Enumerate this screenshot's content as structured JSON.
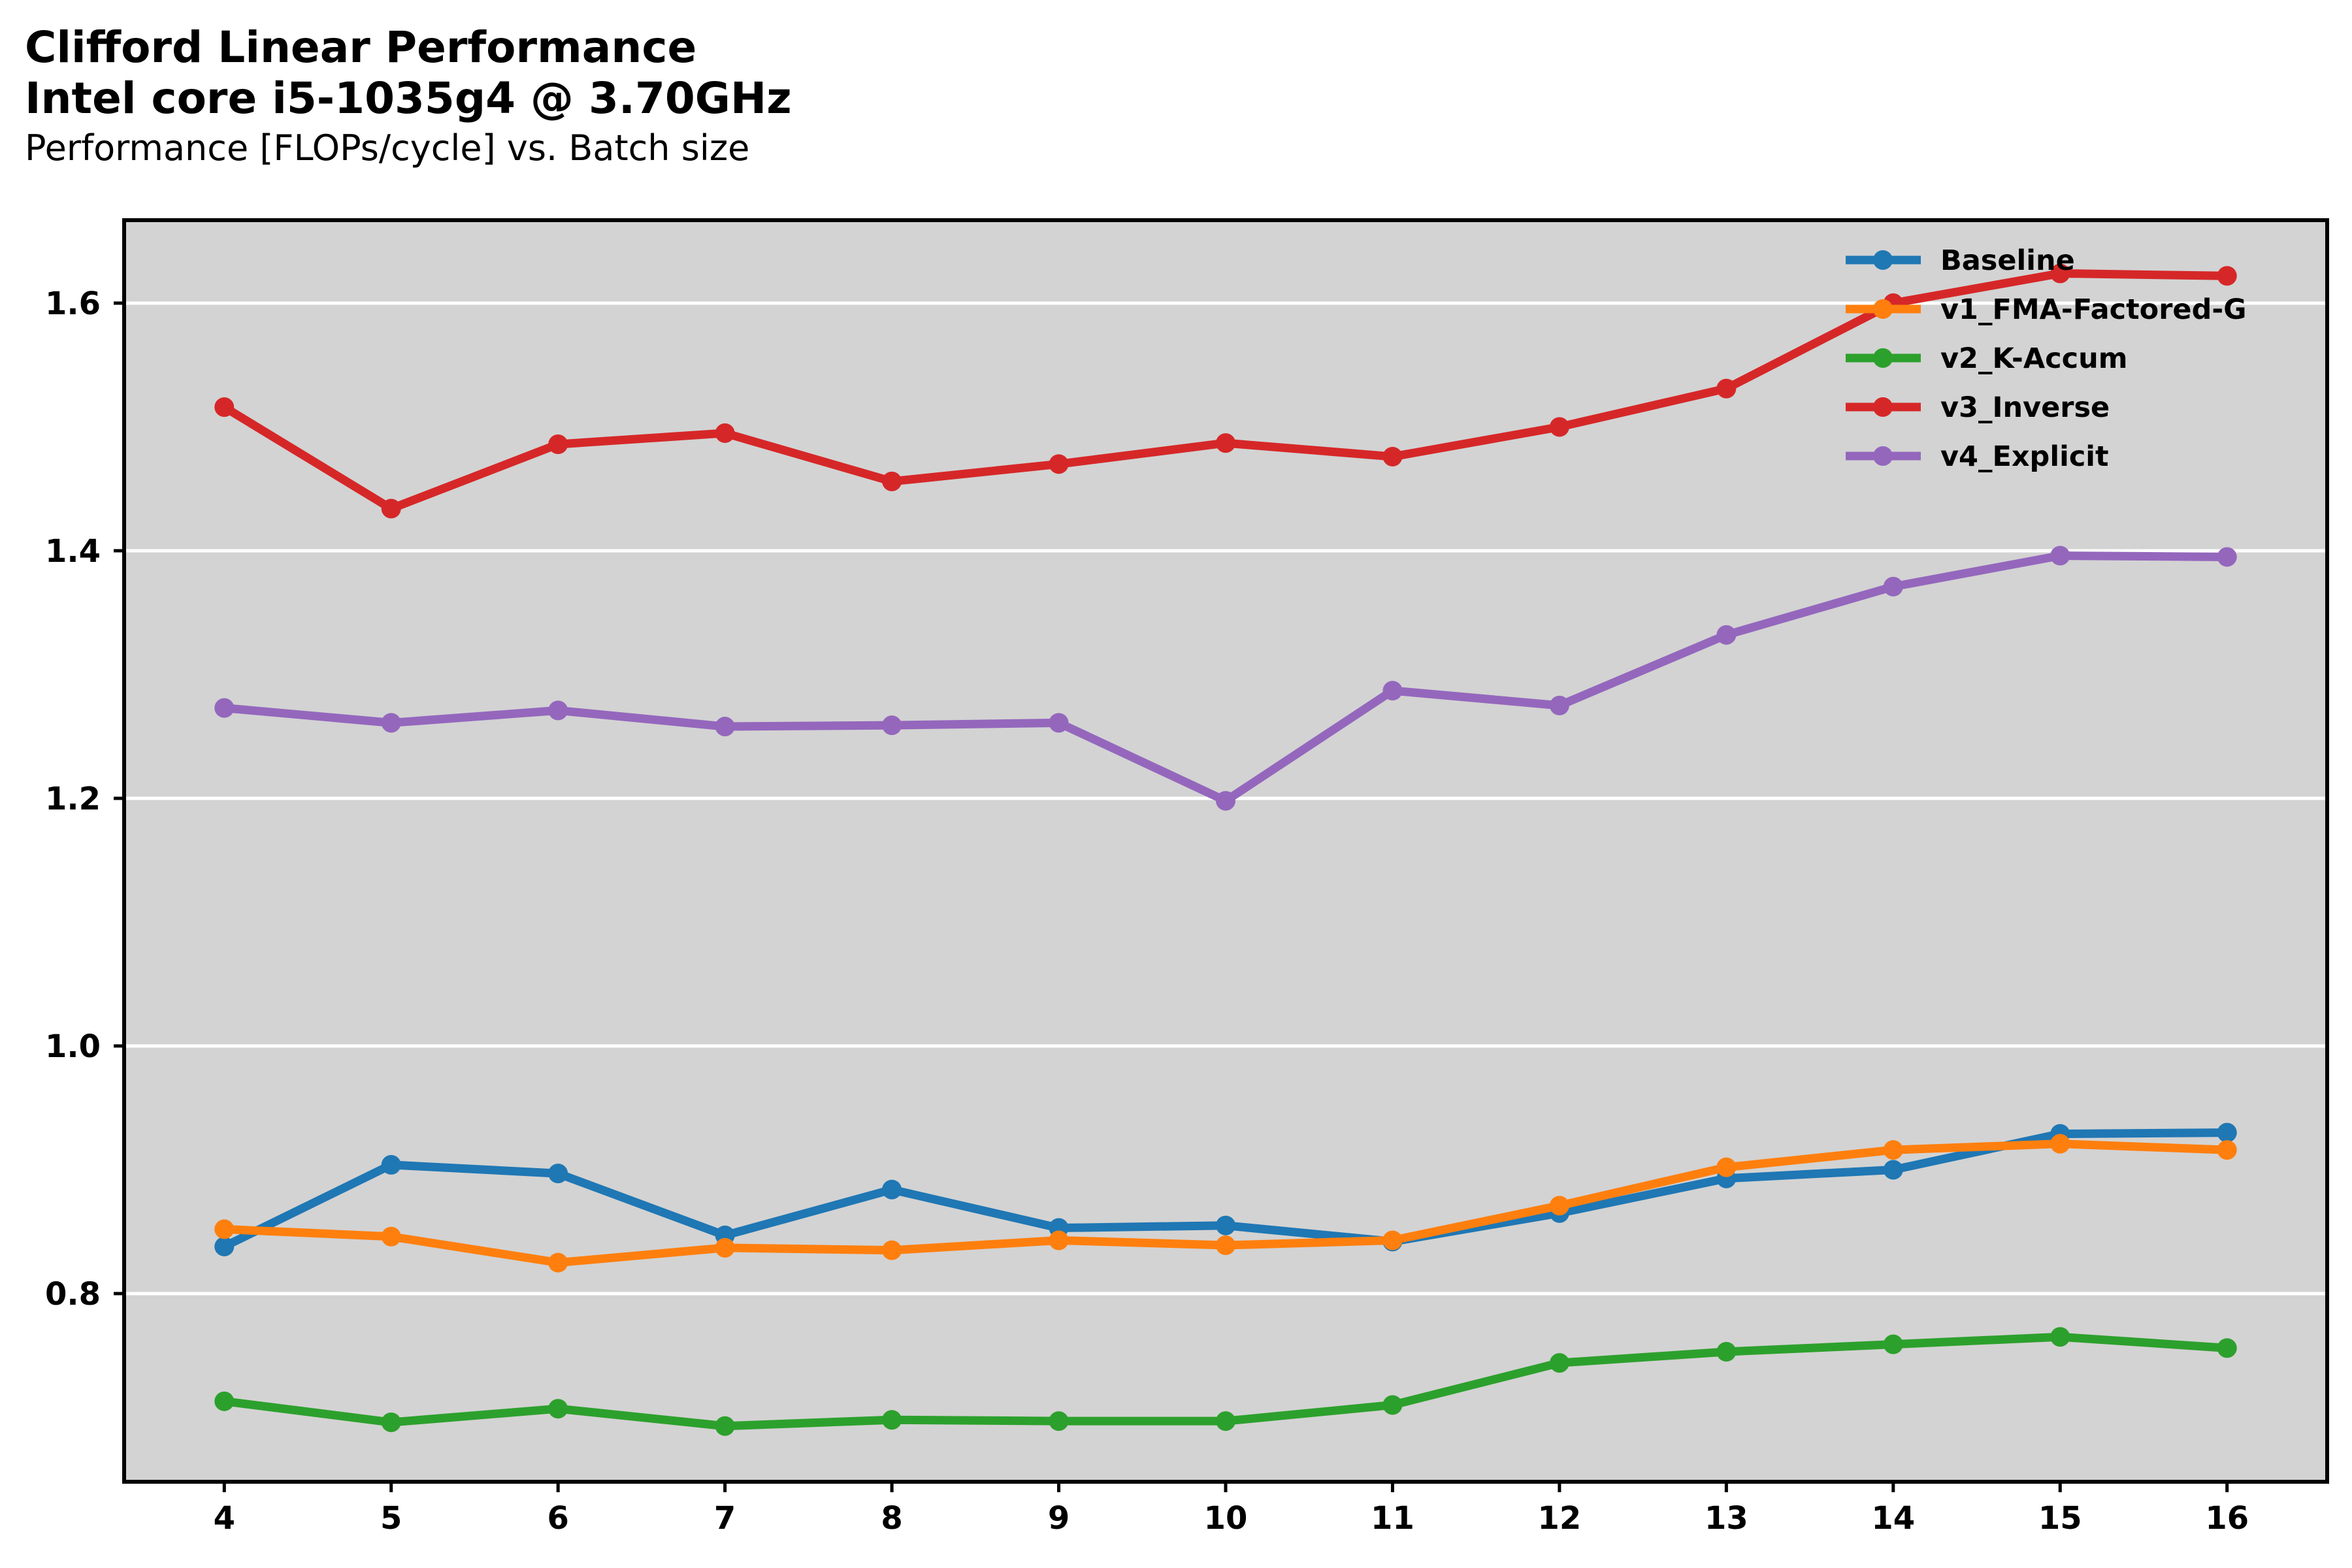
{
  "chart_data": {
    "type": "line",
    "title": "Clifford Linear Performance",
    "title_line2": "Intel core i5-1035g4 @ 3.70GHz",
    "subtitle": "Performance [FLOPs/cycle] vs. Batch size",
    "xlabel": "",
    "ylabel": "",
    "x": [
      4,
      5,
      6,
      7,
      8,
      9,
      10,
      11,
      12,
      13,
      14,
      15,
      16
    ],
    "xlim": [
      3.4,
      16.6
    ],
    "ylim": [
      0.648,
      1.667
    ],
    "yticks": [
      0.8,
      1.0,
      1.2,
      1.4,
      1.6
    ],
    "ytick_labels": [
      "0.8",
      "1.0",
      "1.2",
      "1.4",
      "1.6"
    ],
    "xtick_labels": [
      "4",
      "5",
      "6",
      "7",
      "8",
      "9",
      "10",
      "11",
      "12",
      "13",
      "14",
      "15",
      "16"
    ],
    "grid": "horizontal",
    "background": "#d3d3d3",
    "legend_position": "top-right",
    "series": [
      {
        "name": "Baseline",
        "color": "#1f77b4",
        "values": [
          0.838,
          0.904,
          0.897,
          0.847,
          0.884,
          0.853,
          0.855,
          0.842,
          0.865,
          0.893,
          0.9,
          0.929,
          0.93
        ]
      },
      {
        "name": "v1_FMA-Factored-G",
        "color": "#ff7f0e",
        "values": [
          0.852,
          0.846,
          0.825,
          0.837,
          0.835,
          0.843,
          0.839,
          0.843,
          0.871,
          0.902,
          0.916,
          0.921,
          0.916
        ]
      },
      {
        "name": "v2_K-Accum",
        "color": "#2ca02c",
        "values": [
          0.713,
          0.696,
          0.707,
          0.693,
          0.698,
          0.697,
          0.697,
          0.71,
          0.744,
          0.753,
          0.759,
          0.765,
          0.756
        ]
      },
      {
        "name": "v3_Inverse",
        "color": "#d62728",
        "values": [
          1.516,
          1.434,
          1.486,
          1.495,
          1.456,
          1.47,
          1.487,
          1.476,
          1.5,
          1.531,
          1.6,
          1.624,
          1.622
        ]
      },
      {
        "name": "v4_Explicit",
        "color": "#9467bd",
        "values": [
          1.273,
          1.261,
          1.271,
          1.258,
          1.259,
          1.261,
          1.198,
          1.287,
          1.275,
          1.332,
          1.371,
          1.396,
          1.395
        ]
      }
    ]
  }
}
